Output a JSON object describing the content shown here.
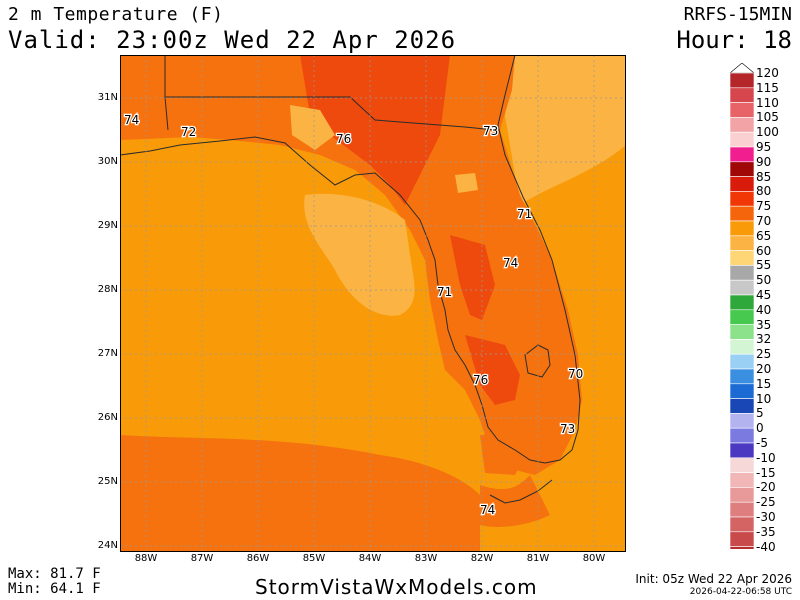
{
  "header": {
    "title": "2 m Temperature (F)",
    "valid": "Valid: 23:00z Wed 22 Apr 2026",
    "model": "RRFS-15MIN",
    "hour": "Hour: 18"
  },
  "map": {
    "lat_labels": [
      "31N",
      "30N",
      "29N",
      "28N",
      "27N",
      "26N",
      "25N",
      "24N"
    ],
    "lon_labels": [
      "88W",
      "87W",
      "86W",
      "85W",
      "84W",
      "83W",
      "82W",
      "81W",
      "80W"
    ],
    "point_values": [
      {
        "label": "74",
        "name": "pensacola"
      },
      {
        "label": "72",
        "name": "panama-city-west"
      },
      {
        "label": "76",
        "name": "tallahassee"
      },
      {
        "label": "73",
        "name": "jacksonville"
      },
      {
        "label": "71",
        "name": "daytona"
      },
      {
        "label": "74",
        "name": "orlando"
      },
      {
        "label": "71",
        "name": "tampa"
      },
      {
        "label": "76",
        "name": "fort-myers"
      },
      {
        "label": "70",
        "name": "west-palm"
      },
      {
        "label": "73",
        "name": "miami"
      },
      {
        "label": "74",
        "name": "key-west"
      }
    ],
    "colors": {
      "ocean": "#f99b09",
      "warm_land": "#f5720f",
      "hot": "#ef4a0d",
      "cool": "#fbb443",
      "coast": "#2b2b2b",
      "grid": "#9a9a9a"
    }
  },
  "legend": {
    "labels": [
      "120",
      "115",
      "110",
      "105",
      "100",
      "95",
      "90",
      "85",
      "80",
      "75",
      "70",
      "65",
      "60",
      "55",
      "50",
      "45",
      "40",
      "35",
      "32",
      "25",
      "20",
      "15",
      "10",
      "5",
      "0",
      "-5",
      "-10",
      "-15",
      "-20",
      "-25",
      "-30",
      "-35",
      "-40"
    ],
    "colors": [
      "#b5262b",
      "#d5474c",
      "#e76368",
      "#f1a3a6",
      "#fbd0d1",
      "#f01e8f",
      "#a00707",
      "#d81b0a",
      "#f23706",
      "#f5650b",
      "#f99b09",
      "#fbb443",
      "#fed676",
      "#a8a8a8",
      "#c8c8c8",
      "#2fa83b",
      "#47c94f",
      "#8ce28b",
      "#d4f5d4",
      "#9bd0f5",
      "#3a8fe0",
      "#1c6bd4",
      "#1a47b6",
      "#b3b3f0",
      "#7a7ae0",
      "#4b39c2",
      "#f6d8d8",
      "#f1b7b7",
      "#e89999",
      "#de7e7e",
      "#d46363",
      "#c94a4a",
      "#b82c2c"
    ]
  },
  "footer": {
    "max": "Max: 81.7 F",
    "min": "Min: 64.1 F",
    "site": "StormVistaWxModels.com",
    "init": "Init: 05z Wed 22 Apr 2026",
    "stamp": "2026-04-22-06:58 UTC"
  }
}
